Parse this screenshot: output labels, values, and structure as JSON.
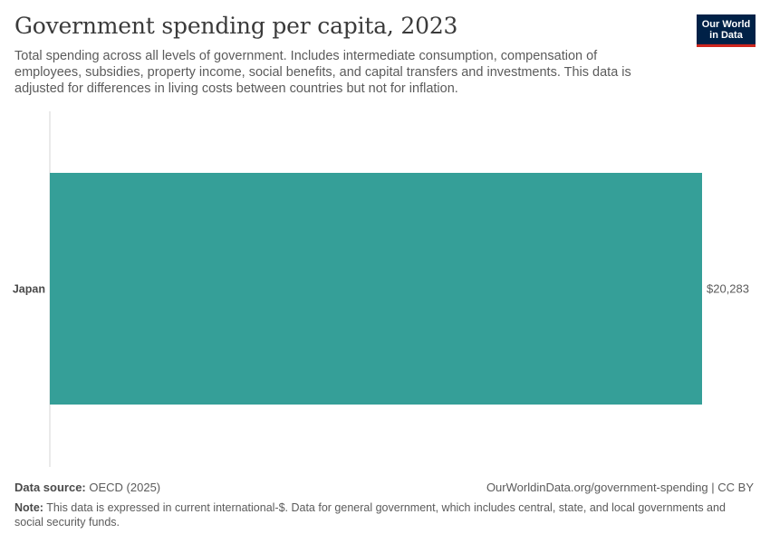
{
  "header": {
    "title": "Government spending per capita, 2023",
    "subtitle": "Total spending across all levels of government. Includes intermediate consumption, compensation of employees, subsidies, property income, social benefits, and capital transfers and investments. This data is adjusted for differences in living costs between countries but not for inflation.",
    "logo_line1": "Our World",
    "logo_line2": "in Data"
  },
  "colors": {
    "bar": "#359f98",
    "axis": "#d6d6d6",
    "logo_bg": "#002147",
    "logo_accent": "#ce261e"
  },
  "chart_data": {
    "type": "bar",
    "orientation": "horizontal",
    "categories": [
      "Japan"
    ],
    "values": [
      20283
    ],
    "value_labels": [
      "$20,283"
    ],
    "xlim": [
      0,
      20283
    ],
    "title": "Government spending per capita, 2023",
    "grid": false
  },
  "footer": {
    "source_label": "Data source:",
    "source_value": "OECD (2025)",
    "url": "OurWorldinData.org/government-spending | CC BY",
    "note_label": "Note:",
    "note_text": "This data is expressed in current international-$. Data for general government, which includes central, state, and local governments and social security funds."
  }
}
